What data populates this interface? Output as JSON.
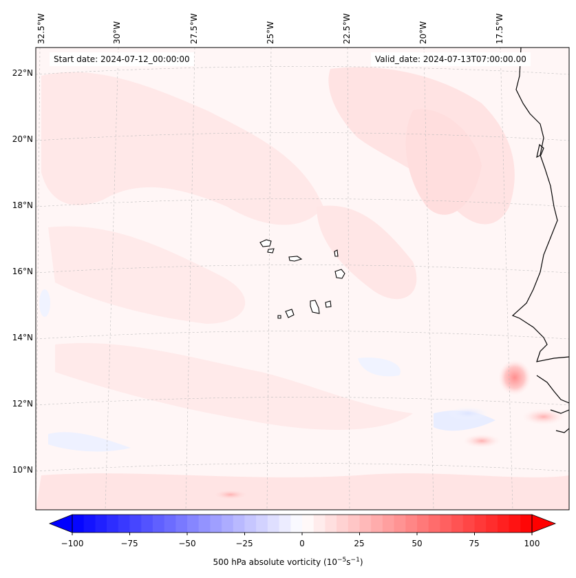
{
  "map": {
    "lon_labels": [
      "32.5°W",
      "30°W",
      "27.5°W",
      "25°W",
      "22.5°W",
      "20°W",
      "17.5°W"
    ],
    "lat_labels": [
      "22°N",
      "20°N",
      "18°N",
      "16°N",
      "14°N",
      "12°N",
      "10°N"
    ],
    "start_date": "Start date: 2024-07-12_00:00:00",
    "valid_date": "Valid_date: 2024-07-13T07:00:00.00"
  },
  "colorbar": {
    "ticks": [
      "−100",
      "−75",
      "−50",
      "−25",
      "0",
      "25",
      "50",
      "75",
      "100"
    ],
    "title": "500 hPa absolute vorticity (10",
    "title_unit": "−5",
    "title_s": "s",
    "title_exp": "−1",
    "title_close": ")",
    "min": -100,
    "max": 100,
    "colors": {
      "negative": "#0000ff",
      "neutral": "#ffffff",
      "positive": "#ff0000"
    }
  }
}
